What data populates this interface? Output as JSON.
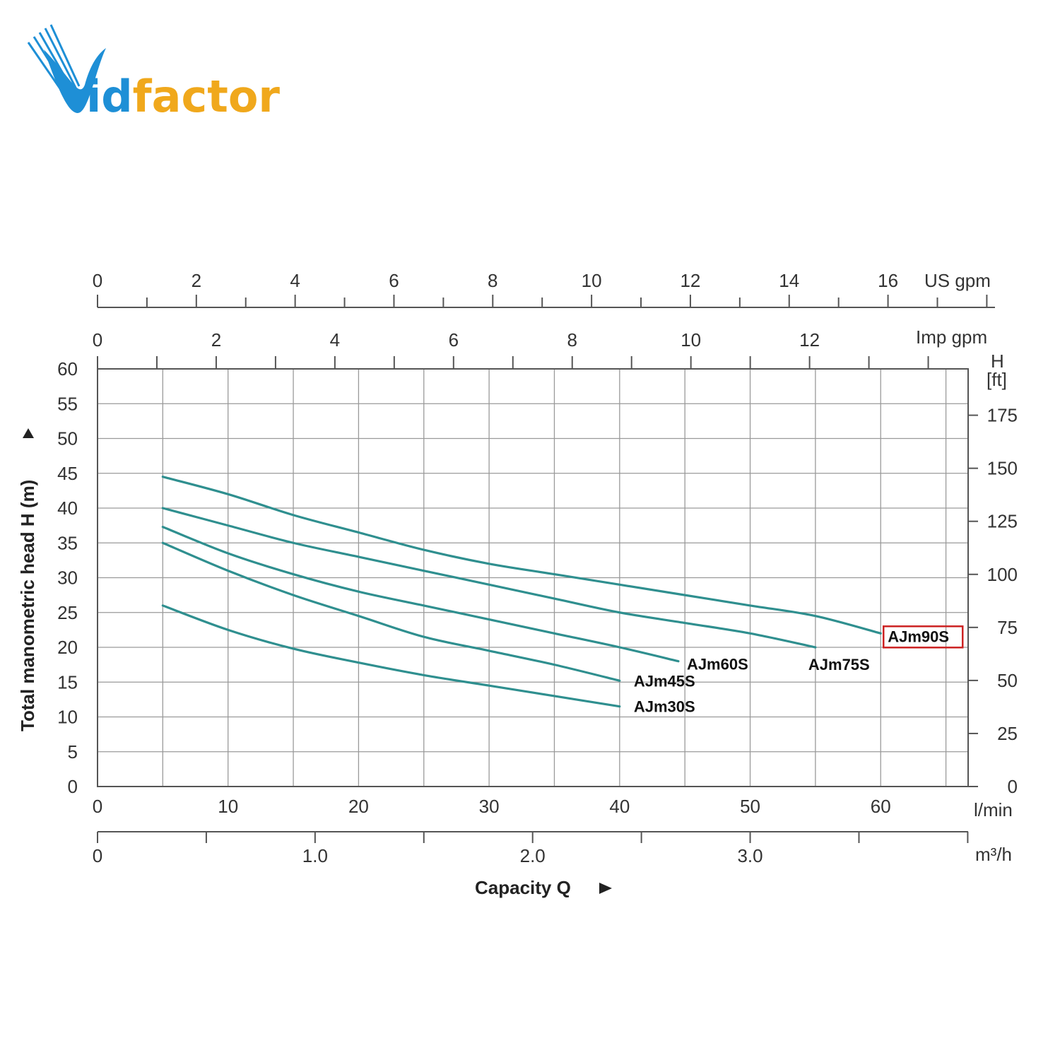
{
  "logo": {
    "text": "Vidfactor",
    "letters_blue": "id",
    "letters_orange": "factor",
    "color_blue": "#1e8fd6",
    "color_orange": "#f0a81c"
  },
  "colors": {
    "curve": "#2f8f8f",
    "grid": "#9a9a9a",
    "axis": "#555555",
    "highlight_box": "#cc2222"
  },
  "chart_data": {
    "type": "line",
    "ylabel": "Total manometric head H (m)",
    "xlabel": "Capacity Q",
    "x_unit": "l/min",
    "ylim": [
      0,
      60
    ],
    "xlim": [
      0,
      66.7
    ],
    "grid": true,
    "x_ticks": [
      0,
      10,
      20,
      30,
      40,
      50,
      60
    ],
    "y_ticks": [
      0,
      5,
      10,
      15,
      20,
      25,
      30,
      35,
      40,
      45,
      50,
      55,
      60
    ],
    "secondary_axes": {
      "us_gpm": {
        "label": "US gpm",
        "ticks": [
          0,
          2,
          4,
          6,
          8,
          10,
          12,
          14,
          16
        ],
        "lpm_per_unit": 3.785
      },
      "imp_gpm": {
        "label": "Imp gpm",
        "ticks": [
          0,
          2,
          4,
          6,
          8,
          10,
          12
        ],
        "lpm_per_unit": 4.546
      },
      "m3h": {
        "label": "m³/h",
        "ticks": [
          "0",
          "1.0",
          "2.0",
          "3.0"
        ],
        "lpm_per_unit": 16.667
      },
      "ft": {
        "label_top": "H",
        "label_bottom": "[ft]",
        "ticks": [
          0,
          25,
          50,
          75,
          100,
          125,
          150,
          175
        ],
        "m_per_unit": 0.3048
      }
    },
    "series": [
      {
        "name": "AJm90S",
        "highlighted": true,
        "x": [
          5,
          10,
          15,
          20,
          25,
          30,
          35,
          40,
          45,
          50,
          55,
          60
        ],
        "y": [
          44.5,
          42,
          39,
          36.5,
          34,
          32,
          30.5,
          29,
          27.5,
          26,
          24.5,
          22
        ]
      },
      {
        "name": "AJm75S",
        "x": [
          5,
          10,
          15,
          20,
          25,
          30,
          35,
          40,
          45,
          50,
          55
        ],
        "y": [
          40,
          37.5,
          35,
          33,
          31,
          29,
          27,
          25,
          23.5,
          22,
          20
        ]
      },
      {
        "name": "AJm60S",
        "x": [
          5,
          10,
          15,
          20,
          25,
          30,
          35,
          40,
          44.5
        ],
        "y": [
          37.3,
          33.5,
          30.5,
          28,
          26,
          24,
          22,
          20,
          18
        ]
      },
      {
        "name": "AJm45S",
        "x": [
          5,
          10,
          15,
          20,
          25,
          30,
          35,
          40
        ],
        "y": [
          35,
          31,
          27.5,
          24.5,
          21.5,
          19.5,
          17.5,
          15.2
        ]
      },
      {
        "name": "AJm30S",
        "x": [
          5,
          10,
          15,
          20,
          25,
          30,
          35,
          40
        ],
        "y": [
          26,
          22.5,
          19.8,
          17.8,
          16,
          14.5,
          13,
          11.5
        ]
      }
    ]
  }
}
